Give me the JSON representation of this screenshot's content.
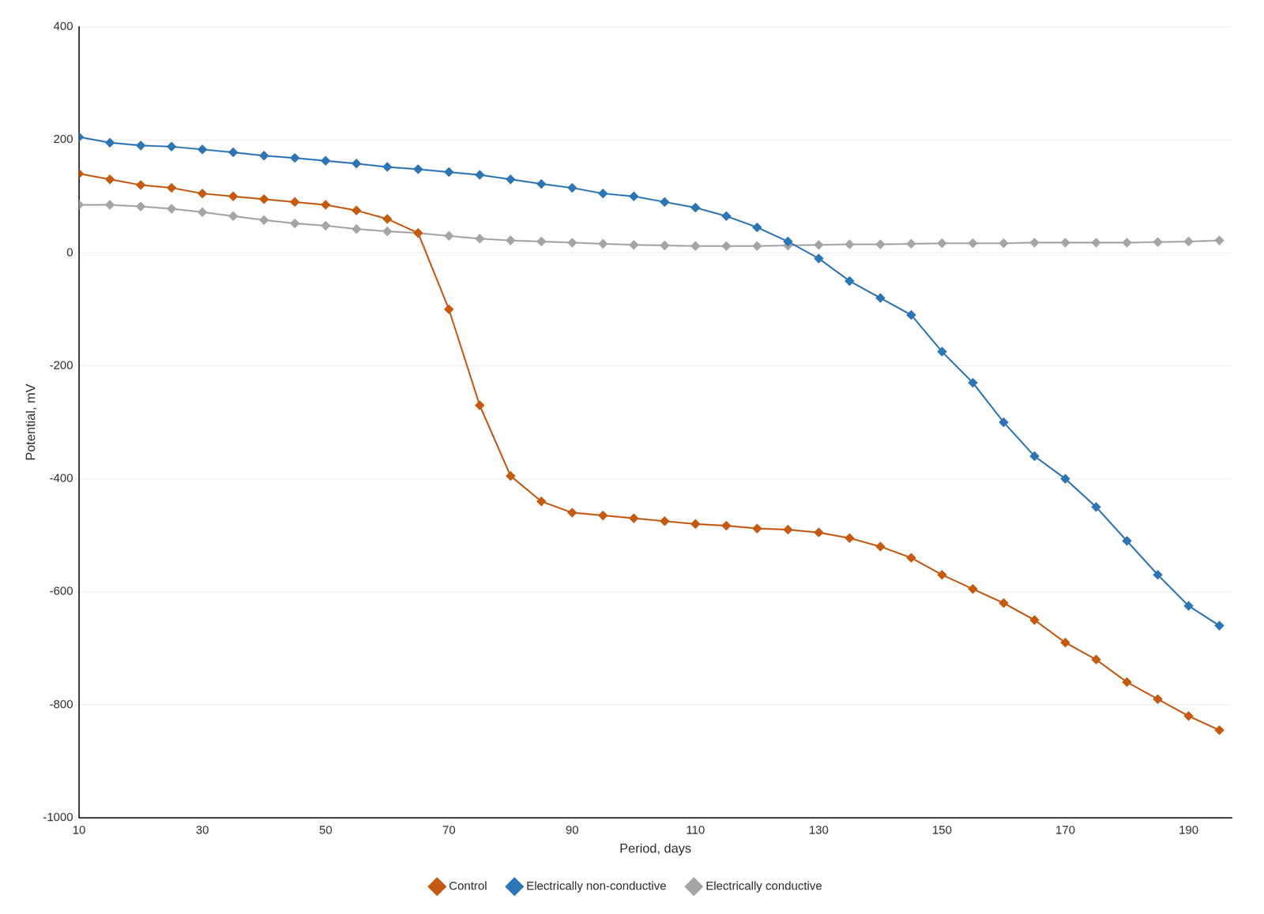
{
  "chart_data": {
    "type": "line",
    "xlabel": "Period, days",
    "ylabel": "Potential, mV",
    "x": [
      10,
      15,
      20,
      25,
      30,
      35,
      40,
      45,
      50,
      55,
      60,
      65,
      70,
      75,
      80,
      85,
      90,
      95,
      100,
      105,
      110,
      115,
      120,
      125,
      130,
      135,
      140,
      145,
      150,
      155,
      160,
      165,
      170,
      175,
      180,
      185,
      190,
      195
    ],
    "series": [
      {
        "name": "Control",
        "color": "#c55a11",
        "marker": "diamond",
        "values": [
          140,
          130,
          120,
          115,
          105,
          100,
          95,
          90,
          85,
          75,
          60,
          35,
          -100,
          -270,
          -395,
          -440,
          -460,
          -465,
          -470,
          -475,
          -480,
          -483,
          -488,
          -490,
          -495,
          -505,
          -520,
          -540,
          -570,
          -595,
          -620,
          -650,
          -690,
          -720,
          -760,
          -790,
          -820,
          -845
        ]
      },
      {
        "name": "Electrically non-conductive",
        "color": "#2e75b6",
        "marker": "diamond",
        "values": [
          205,
          195,
          190,
          188,
          183,
          178,
          172,
          168,
          163,
          158,
          152,
          148,
          143,
          138,
          130,
          122,
          115,
          105,
          100,
          90,
          80,
          65,
          45,
          20,
          -10,
          -50,
          -80,
          -110,
          -175,
          -230,
          -300,
          -360,
          -400,
          -450,
          -510,
          -570,
          -625,
          -660
        ]
      },
      {
        "name": "Electrically conductive",
        "color": "#a5a5a5",
        "marker": "diamond",
        "values": [
          85,
          85,
          82,
          78,
          72,
          65,
          58,
          52,
          48,
          42,
          38,
          35,
          30,
          25,
          22,
          20,
          18,
          16,
          14,
          13,
          12,
          12,
          12,
          13,
          14,
          15,
          15,
          16,
          17,
          17,
          17,
          18,
          18,
          18,
          18,
          19,
          20,
          22
        ]
      }
    ],
    "xlim": [
      10,
      197
    ],
    "xticks": [
      10,
      30,
      50,
      70,
      90,
      110,
      130,
      150,
      170,
      190
    ],
    "ylim": [
      -1000,
      400
    ],
    "yticks": [
      -1000,
      -800,
      -600,
      -400,
      -200,
      0,
      200,
      400
    ],
    "grid": "y",
    "legend": "bottom"
  }
}
